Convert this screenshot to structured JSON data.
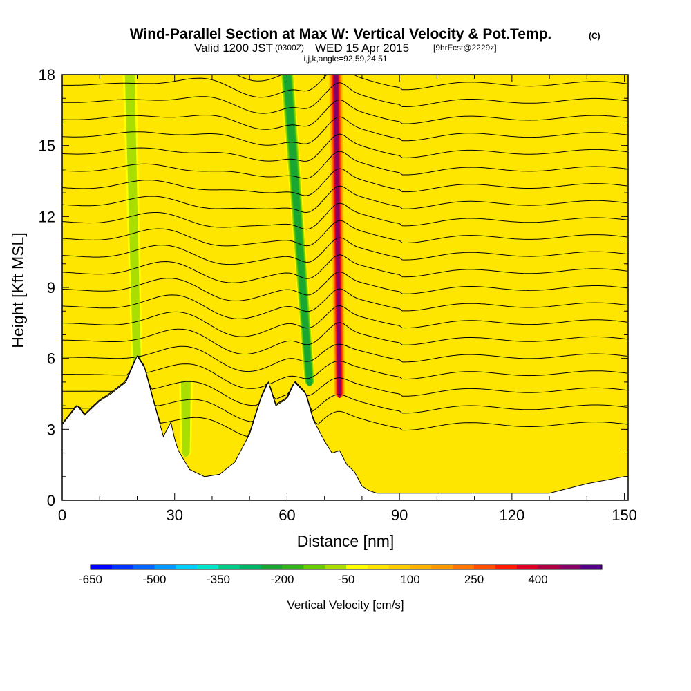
{
  "chart_data": {
    "type": "heatmap",
    "title": "Wind-Parallel Section at Max W: Vertical Velocity & Pot.Temp.",
    "title_mark": "(C)",
    "subtitle": {
      "valid": "Valid 1200 JST",
      "zulu": "(0300Z)",
      "date": "WED 15 Apr 2015",
      "fcst": "[9hrFcst@2229z]"
    },
    "info_line": "i,j,k,angle=92,59,24,51",
    "xlabel": "Distance [nm]",
    "ylabel": "Height [Kft MSL]",
    "xlim": [
      0,
      151
    ],
    "ylim": [
      0,
      18
    ],
    "xticks": [
      0,
      30,
      60,
      90,
      120,
      150
    ],
    "yticks": [
      0,
      3,
      6,
      9,
      12,
      15,
      18
    ],
    "background_w": 30,
    "updrafts": [
      {
        "x": 74,
        "x_top": 73,
        "top": 18,
        "bottom": 4.5,
        "peak_w": 450
      },
      {
        "x": 66,
        "x_top": 60,
        "top": 18,
        "bottom": 5,
        "peak_w": -250
      },
      {
        "x": 20,
        "x_top": 18,
        "top": 18,
        "bottom": 5.5,
        "peak_w": -80
      },
      {
        "x": 33,
        "x_top": 33,
        "top": 5,
        "bottom": 2,
        "peak_w": -60
      }
    ],
    "terrain": [
      [
        0,
        3.2
      ],
      [
        2,
        3.6
      ],
      [
        4,
        4.0
      ],
      [
        6,
        3.6
      ],
      [
        10,
        4.2
      ],
      [
        13,
        4.5
      ],
      [
        17,
        5.0
      ],
      [
        20,
        6.1
      ],
      [
        22,
        5.6
      ],
      [
        24,
        4.4
      ],
      [
        27,
        2.7
      ],
      [
        29,
        3.3
      ],
      [
        30,
        2.6
      ],
      [
        31,
        2.1
      ],
      [
        34,
        1.3
      ],
      [
        38,
        1.0
      ],
      [
        42,
        1.1
      ],
      [
        46,
        1.6
      ],
      [
        50,
        2.8
      ],
      [
        53,
        4.3
      ],
      [
        55,
        5.0
      ],
      [
        57,
        4.0
      ],
      [
        60,
        4.3
      ],
      [
        62,
        5.0
      ],
      [
        65,
        4.5
      ],
      [
        67,
        3.4
      ],
      [
        70,
        2.5
      ],
      [
        72,
        2.0
      ],
      [
        74,
        2.1
      ],
      [
        76,
        1.5
      ],
      [
        78,
        1.2
      ],
      [
        80,
        0.6
      ],
      [
        82,
        0.4
      ],
      [
        84,
        0.3
      ],
      [
        110,
        0.3
      ],
      [
        130,
        0.3
      ],
      [
        140,
        0.7
      ],
      [
        150,
        1.0
      ],
      [
        151,
        1.0
      ]
    ],
    "isentrope_count": 22,
    "colorbar": {
      "label": "Vertical Velocity [cm/s]",
      "tick_labels": [
        "-650",
        "-500",
        "-350",
        "-200",
        "-50",
        "100",
        "250",
        "400"
      ],
      "colors": [
        "#0000ff",
        "#0033ff",
        "#0066ff",
        "#0099ff",
        "#00ccff",
        "#00e6cc",
        "#00cc88",
        "#00b366",
        "#1aa633",
        "#33b31a",
        "#66cc00",
        "#aadd00",
        "#ffff00",
        "#ffe600",
        "#ffcc00",
        "#ffb300",
        "#ff9900",
        "#ff7700",
        "#ff4d00",
        "#ff1a00",
        "#dd0022",
        "#aa0044",
        "#880066",
        "#550088"
      ]
    }
  }
}
